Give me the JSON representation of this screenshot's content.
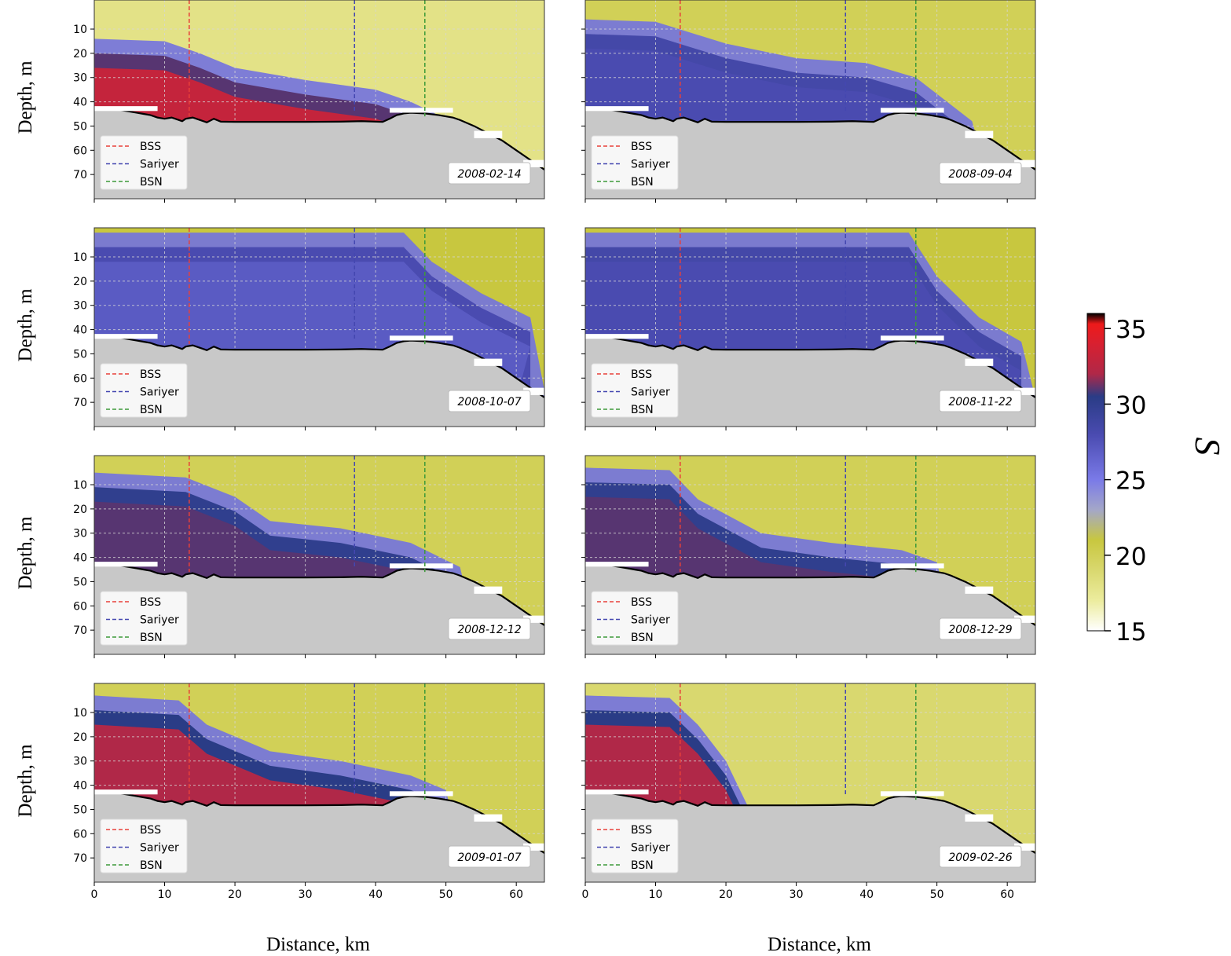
{
  "figure": {
    "y_axis_label": "Depth, m",
    "x_axis_label": "Distance, km"
  },
  "colorbar": {
    "label": "S",
    "range": [
      15,
      36
    ],
    "ticks": [
      "15",
      "20",
      "25",
      "30",
      "35"
    ],
    "tick_values": [
      15,
      20,
      25,
      30,
      35
    ],
    "colors": [
      "#ffffff",
      "#ecec9e",
      "#d9d86f",
      "#c8c73f",
      "#a4a7c8",
      "#7a7ae8",
      "#4a4bb0",
      "#2a3c86",
      "#b02848",
      "#d82030",
      "#ee1a1a",
      "#000000"
    ],
    "color_stops": [
      15,
      17,
      19,
      21,
      23,
      25,
      28,
      30.5,
      32,
      34,
      35.3,
      36
    ]
  },
  "legend": [
    {
      "name": "BSS",
      "color": "#e8403a"
    },
    {
      "name": "Sariyer",
      "color": "#4447b0"
    },
    {
      "name": "BSN",
      "color": "#3d9a3a"
    }
  ],
  "section_markers_km": {
    "BSS": 13.5,
    "Sariyer": 37,
    "BSN": 47
  },
  "chart_data": [
    {
      "type": "heatmap",
      "date": "2008-02-14",
      "xlabel": "",
      "ylabel": "Depth, m",
      "xlim": [
        0,
        64
      ],
      "ylim": [
        80,
        0
      ],
      "x_ticks": [
        "0",
        "10",
        "20",
        "30",
        "40",
        "50",
        "60"
      ],
      "y_ticks": [
        "10",
        "20",
        "30",
        "40",
        "50",
        "60",
        "70"
      ],
      "interface_depth_m": [
        [
          0,
          14
        ],
        [
          10,
          15
        ],
        [
          15,
          20
        ],
        [
          20,
          26
        ],
        [
          30,
          31
        ],
        [
          40,
          35
        ],
        [
          45,
          40
        ],
        [
          50,
          47
        ]
      ],
      "surface_salinity": 18,
      "lower_salinity": 33
    },
    {
      "type": "heatmap",
      "date": "2008-09-04",
      "xlabel": "",
      "ylabel": "",
      "xlim": [
        0,
        64
      ],
      "ylim": [
        80,
        0
      ],
      "x_ticks": [
        "0",
        "10",
        "20",
        "30",
        "40",
        "50",
        "60"
      ],
      "y_ticks": [
        "10",
        "20",
        "30",
        "40",
        "50",
        "60",
        "70"
      ],
      "interface_depth_m": [
        [
          0,
          6
        ],
        [
          10,
          7
        ],
        [
          20,
          16
        ],
        [
          30,
          22
        ],
        [
          40,
          24
        ],
        [
          47,
          30
        ],
        [
          55,
          48
        ]
      ],
      "surface_salinity": 20,
      "lower_salinity": 28
    },
    {
      "type": "heatmap",
      "date": "2008-10-07",
      "xlabel": "",
      "ylabel": "Depth, m",
      "xlim": [
        0,
        64
      ],
      "ylim": [
        80,
        0
      ],
      "x_ticks": [
        "0",
        "10",
        "20",
        "30",
        "40",
        "50",
        "60"
      ],
      "y_ticks": [
        "10",
        "20",
        "30",
        "40",
        "50",
        "60",
        "70"
      ],
      "interface_depth_m": [
        [
          0,
          0
        ],
        [
          44,
          0
        ],
        [
          48,
          12
        ],
        [
          55,
          25
        ],
        [
          62,
          35
        ]
      ],
      "surface_salinity": 21,
      "lower_salinity": 27
    },
    {
      "type": "heatmap",
      "date": "2008-11-22",
      "xlabel": "",
      "ylabel": "",
      "xlim": [
        0,
        64
      ],
      "ylim": [
        80,
        0
      ],
      "x_ticks": [
        "0",
        "10",
        "20",
        "30",
        "40",
        "50",
        "60"
      ],
      "y_ticks": [
        "10",
        "20",
        "30",
        "40",
        "50",
        "60",
        "70"
      ],
      "interface_depth_m": [
        [
          0,
          0
        ],
        [
          46,
          0
        ],
        [
          50,
          18
        ],
        [
          56,
          35
        ],
        [
          62,
          45
        ]
      ],
      "surface_salinity": 21,
      "lower_salinity": 28
    },
    {
      "type": "heatmap",
      "date": "2008-12-12",
      "xlabel": "",
      "ylabel": "Depth, m",
      "xlim": [
        0,
        64
      ],
      "ylim": [
        80,
        0
      ],
      "x_ticks": [
        "0",
        "10",
        "20",
        "30",
        "40",
        "50",
        "60"
      ],
      "y_ticks": [
        "10",
        "20",
        "30",
        "40",
        "50",
        "60",
        "70"
      ],
      "interface_depth_m": [
        [
          0,
          5
        ],
        [
          13,
          7
        ],
        [
          20,
          15
        ],
        [
          25,
          25
        ],
        [
          35,
          28
        ],
        [
          45,
          34
        ],
        [
          52,
          44
        ]
      ],
      "surface_salinity": 20,
      "lower_salinity": 31
    },
    {
      "type": "heatmap",
      "date": "2008-12-29",
      "xlabel": "",
      "ylabel": "",
      "xlim": [
        0,
        64
      ],
      "ylim": [
        80,
        0
      ],
      "x_ticks": [
        "0",
        "10",
        "20",
        "30",
        "40",
        "50",
        "60"
      ],
      "y_ticks": [
        "10",
        "20",
        "30",
        "40",
        "50",
        "60",
        "70"
      ],
      "interface_depth_m": [
        [
          0,
          3
        ],
        [
          12,
          4
        ],
        [
          16,
          16
        ],
        [
          25,
          30
        ],
        [
          35,
          34
        ],
        [
          45,
          37
        ],
        [
          50,
          42
        ]
      ],
      "surface_salinity": 20,
      "lower_salinity": 31
    },
    {
      "type": "heatmap",
      "date": "2009-01-07",
      "xlabel": "Distance, km",
      "ylabel": "Depth, m",
      "xlim": [
        0,
        64
      ],
      "ylim": [
        80,
        0
      ],
      "x_ticks": [
        "0",
        "10",
        "20",
        "30",
        "40",
        "50",
        "60"
      ],
      "y_ticks": [
        "10",
        "20",
        "30",
        "40",
        "50",
        "60",
        "70"
      ],
      "interface_depth_m": [
        [
          0,
          3
        ],
        [
          12,
          5
        ],
        [
          16,
          15
        ],
        [
          25,
          26
        ],
        [
          35,
          30
        ],
        [
          45,
          36
        ],
        [
          50,
          42
        ]
      ],
      "surface_salinity": 20,
      "lower_salinity": 32
    },
    {
      "type": "heatmap",
      "date": "2009-02-26",
      "xlabel": "Distance, km",
      "ylabel": "",
      "xlim": [
        0,
        64
      ],
      "ylim": [
        80,
        0
      ],
      "x_ticks": [
        "0",
        "10",
        "20",
        "30",
        "40",
        "50",
        "60"
      ],
      "y_ticks": [
        "10",
        "20",
        "30",
        "40",
        "50",
        "60",
        "70"
      ],
      "interface_depth_m": [
        [
          0,
          3
        ],
        [
          12,
          4
        ],
        [
          16,
          15
        ],
        [
          20,
          30
        ],
        [
          23,
          48
        ]
      ],
      "surface_salinity": 19,
      "lower_salinity": 32
    }
  ]
}
